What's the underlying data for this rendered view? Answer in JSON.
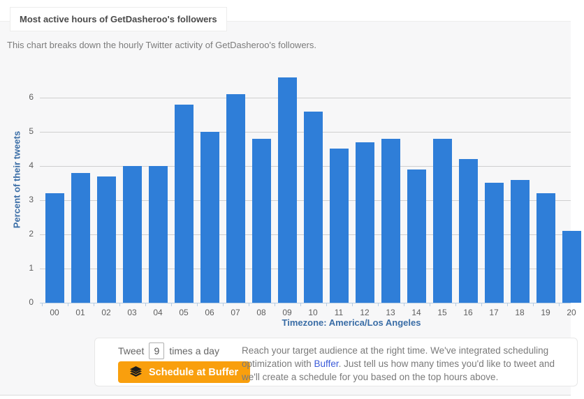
{
  "header": {
    "title": "Most active hours of GetDasheroo's followers"
  },
  "subtitle": "This chart breaks down the hourly Twitter activity of GetDasheroo's followers.",
  "chart_data": {
    "type": "bar",
    "categories": [
      "00",
      "01",
      "02",
      "03",
      "04",
      "05",
      "06",
      "07",
      "08",
      "09",
      "10",
      "11",
      "12",
      "13",
      "14",
      "15",
      "16",
      "17",
      "18",
      "19",
      "20"
    ],
    "values": [
      3.2,
      3.8,
      3.7,
      4.0,
      4.0,
      5.8,
      5.0,
      6.1,
      4.8,
      6.6,
      5.6,
      4.5,
      4.7,
      4.8,
      3.9,
      4.8,
      4.2,
      3.5,
      3.6,
      3.2,
      2.1
    ],
    "title": "Most active hours of GetDasheroo's followers",
    "xlabel": "Timezone: America/Los Angeles",
    "ylabel": "Percent of their tweets",
    "ylim": [
      0,
      6.9
    ],
    "yticks": [
      0,
      1,
      2,
      3,
      4,
      5,
      6
    ],
    "grid": true,
    "legend": "none",
    "bar_color": "#2f7ed8"
  },
  "scheduler": {
    "tweet_label": "Tweet",
    "times_value": "9",
    "times_suffix": "times a day",
    "button_label": "Schedule at Buffer",
    "buffer_icon": "stacked-layers",
    "blurb_before": "Reach your target audience at the right time. We've integrated scheduling optimization with ",
    "blurb_link": "Buffer",
    "blurb_after": ". Just tell us how many times you'd like to tweet and we'll create a schedule for you based on the top hours above."
  },
  "colors": {
    "bar": "#2f7ed8",
    "axis_title_blue": "#3a6da6",
    "button_orange": "#f99f0d",
    "link_blue": "#3b5bd9",
    "panel_bg": "#f7f7f8"
  }
}
